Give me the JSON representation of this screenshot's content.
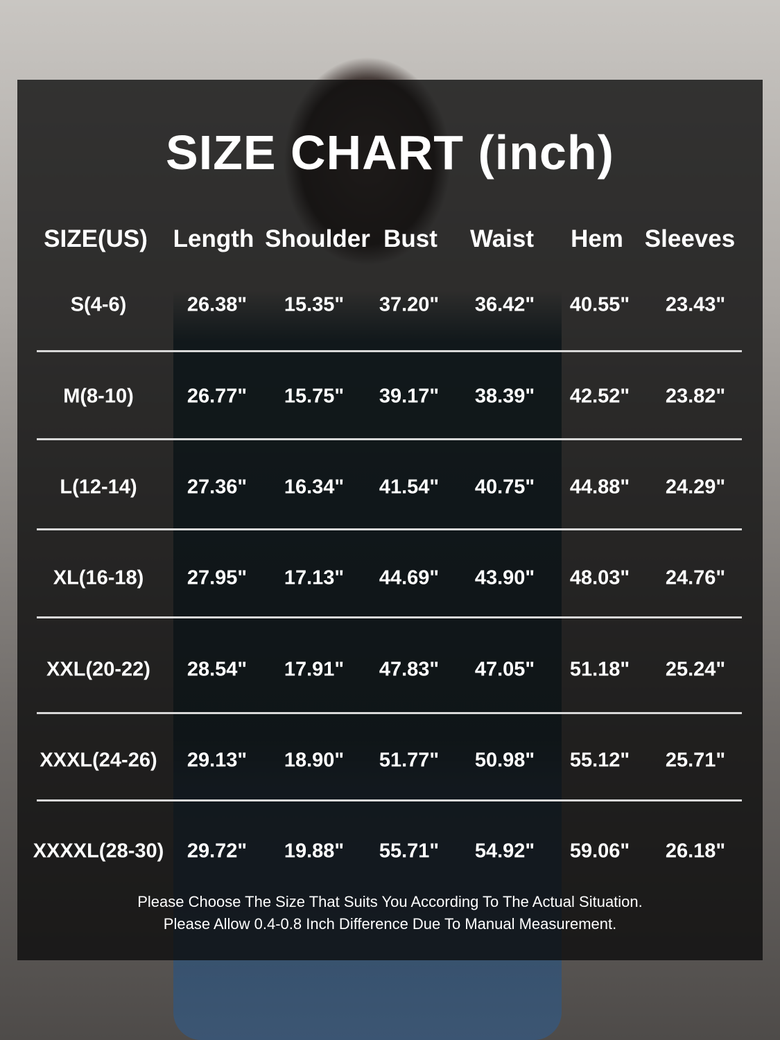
{
  "title": "SIZE CHART (inch)",
  "table": {
    "headers": [
      "SIZE(US)",
      "Length",
      "Shoulder",
      "Bust",
      "Waist",
      "Hem",
      "Sleeves"
    ],
    "rows": [
      [
        "S(4-6)",
        "26.38\"",
        "15.35\"",
        "37.20\"",
        "36.42\"",
        "40.55\"",
        "23.43\""
      ],
      [
        "M(8-10)",
        "26.77\"",
        "15.75\"",
        "39.17\"",
        "38.39\"",
        "42.52\"",
        "23.82\""
      ],
      [
        "L(12-14)",
        "27.36\"",
        "16.34\"",
        "41.54\"",
        "40.75\"",
        "44.88\"",
        "24.29\""
      ],
      [
        "XL(16-18)",
        "27.95\"",
        "17.13\"",
        "44.69\"",
        "43.90\"",
        "48.03\"",
        "24.76\""
      ],
      [
        "XXL(20-22)",
        "28.54\"",
        "17.91\"",
        "47.83\"",
        "47.05\"",
        "51.18\"",
        "25.24\""
      ],
      [
        "XXXL(24-26)",
        "29.13\"",
        "18.90\"",
        "51.77\"",
        "50.98\"",
        "55.12\"",
        "25.71\""
      ],
      [
        "XXXXL(28-30)",
        "29.72\"",
        "19.88\"",
        "55.71\"",
        "54.92\"",
        "59.06\"",
        "26.18\""
      ]
    ]
  },
  "notes": [
    "Please Choose The Size That Suits You According To The Actual Situation.",
    "Please Allow 0.4-0.8 Inch Difference Due To Manual Measurement."
  ]
}
